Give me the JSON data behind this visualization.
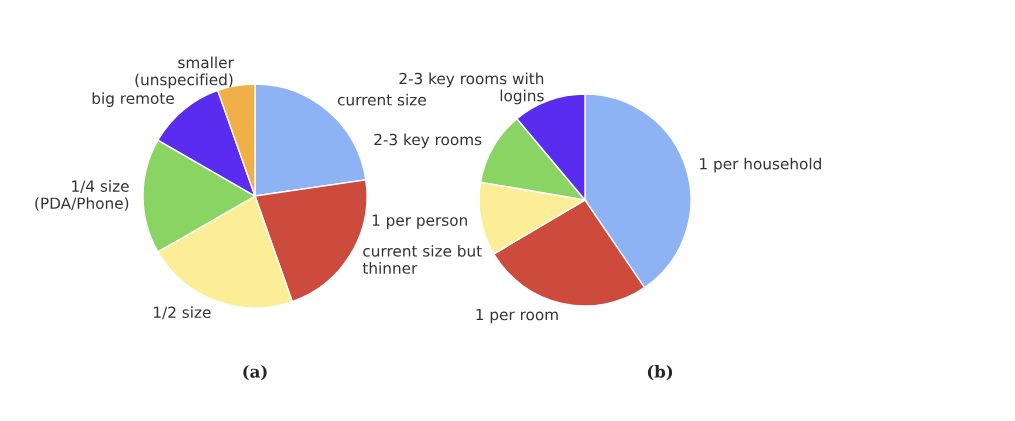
{
  "chart_data": [
    {
      "type": "pie",
      "categories": [
        "current size",
        "current size but\nthinner",
        "1/2 size",
        "1/4 size\n(PDA/Phone)",
        "big remote",
        "smaller\n(unspecified)"
      ],
      "values": [
        22.7,
        21.9,
        22.1,
        16.6,
        11.3,
        5.4
      ],
      "colors": [
        "#8db3f5",
        "#cc4b3c",
        "#fbee96",
        "#8ad463",
        "#5a2cf0",
        "#f0b048"
      ],
      "annotations": [
        "(a)"
      ]
    },
    {
      "type": "pie",
      "categories": [
        "1 per household",
        "1 per room",
        "1 per person",
        "2-3 key rooms",
        "2-3 key rooms with\nlogins"
      ],
      "values": [
        40.5,
        26.0,
        11.2,
        11.2,
        11.1
      ],
      "colors": [
        "#8db3f5",
        "#cc4b3c",
        "#fbee96",
        "#8ad463",
        "#5a2cf0"
      ],
      "annotations": [
        "(b)"
      ]
    }
  ]
}
